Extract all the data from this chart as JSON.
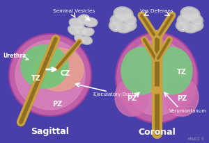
{
  "bg_color": "#4840a8",
  "title_sagittal": "Sagittal",
  "title_coronal": "Coronal",
  "label_TZ": "TZ",
  "label_CZ": "CZ",
  "label_PZ": "PZ",
  "label_urethra": "Urethra",
  "label_seminal": "Seminal Vesicles",
  "label_ejac": "Ejaculatory Ducts",
  "label_vas": "Vas Deferens",
  "label_verum": "Verumontanum",
  "label_TZ2": "TZ",
  "label_PZ2": "PZ",
  "label_PZ3": "PZ",
  "watermark": "MSKCC ©",
  "text_color": "white",
  "pz_color": "#d080c0",
  "pz_outer_color": "#c068b0",
  "tz_color": "#70c878",
  "cz_color": "#e8a888",
  "urethra_color": "#c8a040",
  "urethra_dark": "#907020",
  "seminal_color": "#c8c8c8",
  "outline_color": "#b055a5",
  "inner_ring_color": "#e8a0d0",
  "coronal_tz_color": "#78c880",
  "coronal_inner_color": "#e0a8d0"
}
